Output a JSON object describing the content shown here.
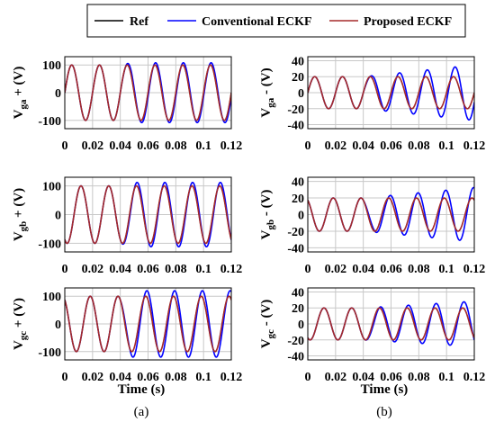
{
  "legend": {
    "entries": [
      {
        "label": "Ref",
        "color": "#000000"
      },
      {
        "label": "Conventional ECKF",
        "color": "#0000ff"
      },
      {
        "label": "Proposed ECKF",
        "color": "#a52a2a"
      }
    ]
  },
  "xlabel": "Time (s)",
  "captions": [
    "(a)",
    "(b)"
  ],
  "chart_data": [
    {
      "id": "vga-pos",
      "type": "line",
      "column": 0,
      "row": 0,
      "ylabel_main": "V",
      "ylabel_sub": "ga",
      "ylabel_tail": " + (V)",
      "xlim": [
        0,
        0.12
      ],
      "ylim": [
        -130,
        130
      ],
      "xticks": [
        "0",
        "0.02",
        "0.04",
        "0.06",
        "0.08",
        "0.1",
        "0.12"
      ],
      "yticks": [
        {
          "v": 100,
          "t": "100"
        },
        {
          "v": 0,
          "t": "0"
        },
        {
          "v": -100,
          "t": "-100"
        }
      ],
      "grid": true,
      "ref": {
        "amp": 100,
        "freq": 50,
        "phase_deg": 0
      },
      "conventional": {
        "amp_after_disturbance": 108,
        "phase_deg_after": -8
      },
      "proposed": {
        "amp": 100,
        "phase_deg": 0
      },
      "disturbance_time": 0.04
    },
    {
      "id": "vgb-pos",
      "type": "line",
      "column": 0,
      "row": 1,
      "ylabel_main": "V",
      "ylabel_sub": "gb",
      "ylabel_tail": " + (V)",
      "xlim": [
        0,
        0.12
      ],
      "ylim": [
        -130,
        130
      ],
      "xticks": [
        "0",
        "0.02",
        "0.04",
        "0.06",
        "0.08",
        "0.1",
        "0.12"
      ],
      "yticks": [
        {
          "v": 100,
          "t": "100"
        },
        {
          "v": 0,
          "t": "0"
        },
        {
          "v": -100,
          "t": "-100"
        }
      ],
      "grid": true,
      "ref": {
        "amp": 100,
        "freq": 50,
        "phase_deg": -120
      },
      "conventional": {
        "amp_after_disturbance": 112,
        "phase_deg_after": -128
      },
      "proposed": {
        "amp": 100,
        "phase_deg": -120
      },
      "disturbance_time": 0.04
    },
    {
      "id": "vgc-pos",
      "type": "line",
      "column": 0,
      "row": 2,
      "ylabel_main": "V",
      "ylabel_sub": "gc",
      "ylabel_tail": " + (V)",
      "xlim": [
        0,
        0.12
      ],
      "ylim": [
        -130,
        130
      ],
      "xticks": [
        "0",
        "0.02",
        "0.04",
        "0.06",
        "0.08",
        "0.1",
        "0.12"
      ],
      "yticks": [
        {
          "v": 100,
          "t": "100"
        },
        {
          "v": 0,
          "t": "0"
        },
        {
          "v": -100,
          "t": "-100"
        }
      ],
      "grid": true,
      "ref": {
        "amp": 100,
        "freq": 50,
        "phase_deg": 120
      },
      "conventional": {
        "amp_after_disturbance": 120,
        "phase_deg_after": 105
      },
      "proposed": {
        "amp": 100,
        "phase_deg": 120
      },
      "disturbance_time": 0.04
    },
    {
      "id": "vga-neg",
      "type": "line",
      "column": 1,
      "row": 0,
      "ylabel_main": "V",
      "ylabel_sub": "ga",
      "ylabel_tail": " - (V)",
      "xlim": [
        0,
        0.12
      ],
      "ylim": [
        -45,
        45
      ],
      "xticks": [
        "0",
        "0.02",
        "0.04",
        "0.06",
        "0.08",
        "0.1",
        "0.12"
      ],
      "yticks": [
        {
          "v": 40,
          "t": "40"
        },
        {
          "v": 20,
          "t": "20"
        },
        {
          "v": 0,
          "t": "0"
        },
        {
          "v": -20,
          "t": "-20"
        },
        {
          "v": -40,
          "t": "-40"
        }
      ],
      "grid": true,
      "ref": {
        "amp": 20,
        "freq": 50,
        "phase_deg": 0
      },
      "conventional": {
        "amp_after_disturbance": 34,
        "phase_deg_after": -20,
        "growing": true
      },
      "proposed": {
        "amp": 20,
        "phase_deg": 0
      },
      "disturbance_time": 0.04
    },
    {
      "id": "vgb-neg",
      "type": "line",
      "column": 1,
      "row": 1,
      "ylabel_main": "V",
      "ylabel_sub": "gb",
      "ylabel_tail": " - (V)",
      "xlim": [
        0,
        0.12
      ],
      "ylim": [
        -45,
        45
      ],
      "xticks": [
        "0",
        "0.02",
        "0.04",
        "0.06",
        "0.08",
        "0.1",
        "0.12"
      ],
      "yticks": [
        {
          "v": 40,
          "t": "40"
        },
        {
          "v": 20,
          "t": "20"
        },
        {
          "v": 0,
          "t": "0"
        },
        {
          "v": -20,
          "t": "-20"
        },
        {
          "v": -40,
          "t": "-40"
        }
      ],
      "grid": true,
      "ref": {
        "amp": 20,
        "freq": 50,
        "phase_deg": 120
      },
      "conventional": {
        "amp_after_disturbance": 32,
        "phase_deg_after": 100,
        "growing": true
      },
      "proposed": {
        "amp": 20,
        "phase_deg": 120
      },
      "disturbance_time": 0.04
    },
    {
      "id": "vgc-neg",
      "type": "line",
      "column": 1,
      "row": 2,
      "ylabel_main": "V",
      "ylabel_sub": "gc",
      "ylabel_tail": " - (V)",
      "xlim": [
        0,
        0.12
      ],
      "ylim": [
        -45,
        45
      ],
      "xticks": [
        "0",
        "0.02",
        "0.04",
        "0.06",
        "0.08",
        "0.1",
        "0.12"
      ],
      "yticks": [
        {
          "v": 40,
          "t": "40"
        },
        {
          "v": 20,
          "t": "20"
        },
        {
          "v": 0,
          "t": "0"
        },
        {
          "v": -20,
          "t": "-20"
        },
        {
          "v": -40,
          "t": "-40"
        }
      ],
      "grid": true,
      "ref": {
        "amp": 20,
        "freq": 50,
        "phase_deg": -120
      },
      "conventional": {
        "amp_after_disturbance": 28,
        "phase_deg_after": -135,
        "growing": true
      },
      "proposed": {
        "amp": 20,
        "phase_deg": -120
      },
      "disturbance_time": 0.04
    }
  ]
}
